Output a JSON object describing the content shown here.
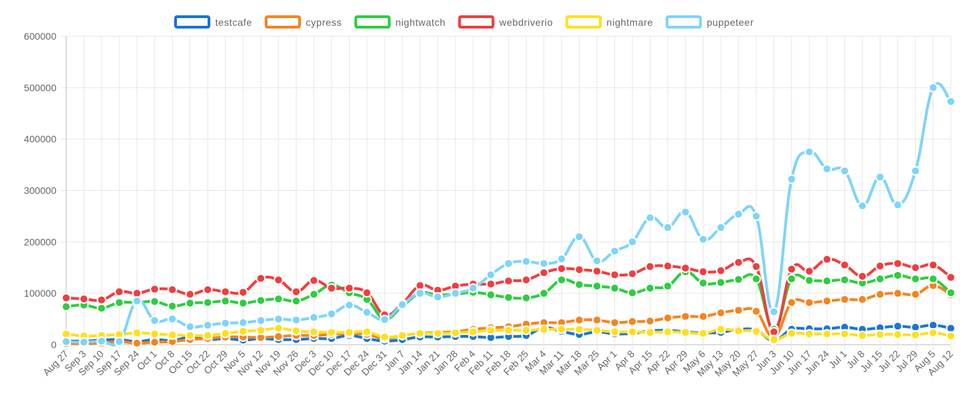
{
  "chart_data": {
    "type": "line",
    "title": "",
    "xlabel": "",
    "ylabel": "",
    "ylim": [
      0,
      600000
    ],
    "yticks": [
      "0",
      "100000",
      "200000",
      "300000",
      "400000",
      "500000",
      "600000"
    ],
    "grid": true,
    "legend_position": "top",
    "categories": [
      "Aug 27",
      "Sep 3",
      "Sep 10",
      "Sep 17",
      "Sep 24",
      "Oct 1",
      "Oct 8",
      "Oct 15",
      "Oct 22",
      "Oct 29",
      "Nov 5",
      "Nov 12",
      "Nov 19",
      "Nov 26",
      "Dec 3",
      "Dec 10",
      "Dec 17",
      "Dec 24",
      "Dec 31",
      "Jan 7",
      "Jan 14",
      "Jan 21",
      "Jan 28",
      "Feb 4",
      "Feb 11",
      "Feb 18",
      "Feb 25",
      "Mar 4",
      "Mar 11",
      "Mar 18",
      "Mar 25",
      "Apr 1",
      "Apr 8",
      "Apr 15",
      "Apr 22",
      "Apr 29",
      "May 6",
      "May 13",
      "May 20",
      "May 27",
      "Jun 3",
      "Jun 10",
      "Jun 17",
      "Jun 24",
      "Jul 1",
      "Jul 8",
      "Jul 15",
      "Jul 22",
      "Jul 29",
      "Aug 5",
      "Aug 12"
    ],
    "series": [
      {
        "name": "testcafe",
        "color": "#1976d2",
        "values": [
          7000,
          7000,
          9000,
          10000,
          6000,
          10000,
          8000,
          15000,
          10000,
          12000,
          9000,
          12000,
          10000,
          10000,
          12000,
          12000,
          18000,
          12000,
          7000,
          10000,
          15000,
          15000,
          16000,
          16000,
          14000,
          16000,
          18000,
          33000,
          26000,
          20000,
          25000,
          21000,
          22000,
          27000,
          28000,
          25000,
          23000,
          24000,
          30000,
          28000,
          8000,
          30000,
          31000,
          31000,
          34000,
          30000,
          33000,
          36000,
          34000,
          38000,
          32000
        ]
      },
      {
        "name": "cypress",
        "color": "#f5841f",
        "values": [
          2000,
          2000,
          3000,
          6000,
          3000,
          5000,
          6000,
          10000,
          12000,
          15000,
          15000,
          14000,
          16000,
          18000,
          18000,
          20000,
          22000,
          20000,
          12000,
          18000,
          22000,
          24000,
          25000,
          30000,
          33000,
          35000,
          40000,
          43000,
          43000,
          48000,
          48000,
          43000,
          45000,
          46000,
          52000,
          55000,
          55000,
          62000,
          67000,
          65000,
          15000,
          82000,
          82000,
          85000,
          88000,
          88000,
          98000,
          100000,
          98000,
          115000,
          97000
        ]
      },
      {
        "name": "nightwatch",
        "color": "#2ecc40",
        "values": [
          74000,
          77000,
          71000,
          82000,
          82000,
          84000,
          75000,
          81000,
          82000,
          85000,
          81000,
          86000,
          89000,
          85000,
          98000,
          116000,
          101000,
          88000,
          50000,
          75000,
          100000,
          97000,
          98000,
          102000,
          97000,
          92000,
          91000,
          100000,
          126000,
          117000,
          114000,
          110000,
          101000,
          110000,
          114000,
          142000,
          120000,
          121000,
          127000,
          128000,
          30000,
          128000,
          125000,
          124000,
          126000,
          120000,
          128000,
          135000,
          128000,
          128000,
          101000
        ]
      },
      {
        "name": "webdriverio",
        "color": "#f03e3e",
        "values": [
          91000,
          89000,
          87000,
          103000,
          100000,
          108000,
          107000,
          98000,
          107000,
          103000,
          102000,
          129000,
          126000,
          103000,
          125000,
          110000,
          110000,
          101000,
          58000,
          80000,
          115000,
          106000,
          114000,
          118000,
          118000,
          124000,
          126000,
          140000,
          148000,
          146000,
          143000,
          136000,
          138000,
          152000,
          153000,
          149000,
          142000,
          144000,
          160000,
          152000,
          25000,
          147000,
          143000,
          166000,
          155000,
          133000,
          153000,
          158000,
          150000,
          155000,
          131000
        ]
      },
      {
        "name": "nightmare",
        "color": "#ffdf1f",
        "values": [
          21000,
          17000,
          18000,
          20000,
          23000,
          21000,
          19000,
          18000,
          18000,
          22000,
          26000,
          28000,
          32000,
          27000,
          25000,
          24000,
          24000,
          25000,
          15000,
          18000,
          22000,
          22000,
          23000,
          25000,
          28000,
          28000,
          28000,
          30000,
          30000,
          30000,
          28000,
          25000,
          25000,
          24000,
          25000,
          24000,
          22000,
          30000,
          27000,
          26000,
          10000,
          22000,
          21000,
          21000,
          21000,
          18000,
          20000,
          20000,
          19000,
          23000,
          17000
        ]
      },
      {
        "name": "puppeteer",
        "color": "#7ed4f7",
        "values": [
          6000,
          5000,
          7000,
          6000,
          85000,
          47000,
          50000,
          35000,
          38000,
          42000,
          43000,
          47000,
          50000,
          48000,
          53000,
          60000,
          77000,
          63000,
          49000,
          78000,
          100000,
          93000,
          100000,
          110000,
          136000,
          158000,
          162000,
          158000,
          167000,
          210000,
          163000,
          182000,
          200000,
          247000,
          228000,
          258000,
          205000,
          228000,
          254000,
          250000,
          64000,
          322000,
          375000,
          342000,
          338000,
          270000,
          326000,
          272000,
          338000,
          500000,
          473000
        ]
      }
    ]
  }
}
